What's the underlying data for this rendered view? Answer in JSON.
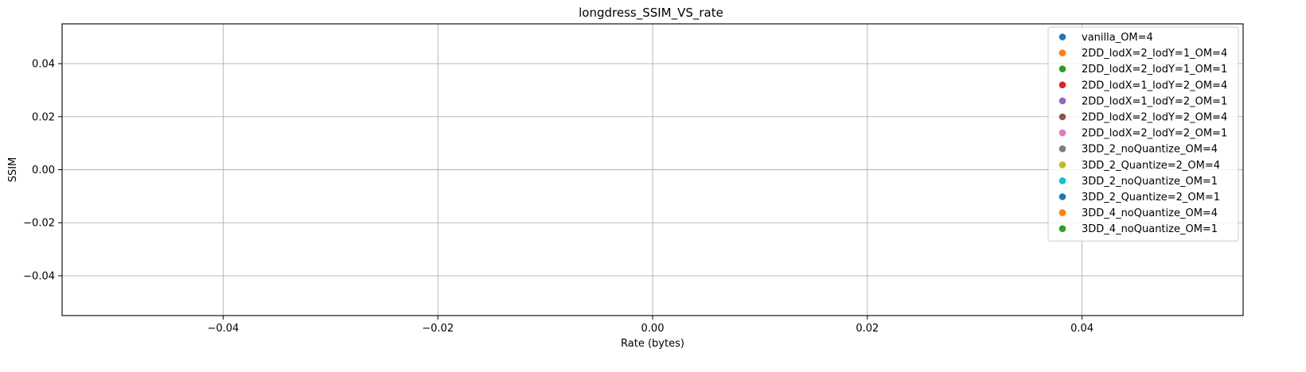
{
  "chart_data": {
    "type": "scatter",
    "title": "longdress_SSIM_VS_rate",
    "xlabel": "Rate (bytes)",
    "ylabel": "SSIM",
    "xlim": [
      -0.055,
      0.055
    ],
    "ylim": [
      -0.055,
      0.055
    ],
    "xticks": [
      -0.04,
      -0.02,
      0.0,
      0.02,
      0.04
    ],
    "xtick_labels": [
      "−0.04",
      "−0.02",
      "0.00",
      "0.02",
      "0.04"
    ],
    "yticks": [
      -0.04,
      -0.02,
      0.0,
      0.02,
      0.04
    ],
    "ytick_labels": [
      "−0.04",
      "−0.02",
      "0.00",
      "0.02",
      "0.04"
    ],
    "grid": true,
    "legend_position": "top-right",
    "series": [
      {
        "name": "vanilla_OM=4",
        "color": "#1f77b4",
        "points": []
      },
      {
        "name": "2DD_lodX=2_lodY=1_OM=4",
        "color": "#ff7f0e",
        "points": []
      },
      {
        "name": "2DD_lodX=2_lodY=1_OM=1",
        "color": "#2ca02c",
        "points": []
      },
      {
        "name": "2DD_lodX=1_lodY=2_OM=4",
        "color": "#d62728",
        "points": []
      },
      {
        "name": "2DD_lodX=1_lodY=2_OM=1",
        "color": "#9467bd",
        "points": []
      },
      {
        "name": "2DD_lodX=2_lodY=2_OM=4",
        "color": "#8c564b",
        "points": []
      },
      {
        "name": "2DD_lodX=2_lodY=2_OM=1",
        "color": "#e377c2",
        "points": []
      },
      {
        "name": "3DD_2_noQuantize_OM=4",
        "color": "#7f7f7f",
        "points": []
      },
      {
        "name": "3DD_2_Quantize=2_OM=4",
        "color": "#bcbd22",
        "points": []
      },
      {
        "name": "3DD_2_noQuantize_OM=1",
        "color": "#17becf",
        "points": []
      },
      {
        "name": "3DD_2_Quantize=2_OM=1",
        "color": "#1f77b4",
        "points": []
      },
      {
        "name": "3DD_4_noQuantize_OM=4",
        "color": "#ff7f0e",
        "points": []
      },
      {
        "name": "3DD_4_noQuantize_OM=1",
        "color": "#2ca02c",
        "points": []
      }
    ]
  }
}
